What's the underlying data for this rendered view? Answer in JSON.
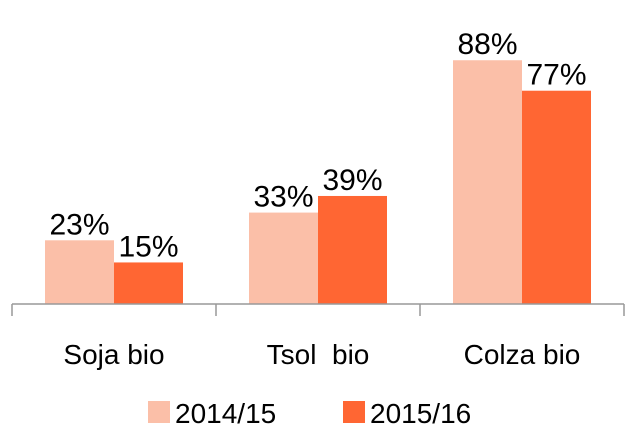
{
  "chart_data": {
    "type": "bar",
    "categories": [
      "Soja bio",
      "Tsol  bio",
      "Colza bio"
    ],
    "series": [
      {
        "name": "2014/15",
        "color": "#fbbfa8",
        "values": [
          23,
          33,
          88
        ],
        "value_labels": [
          "23%",
          "33%",
          "88%"
        ]
      },
      {
        "name": "2015/16",
        "color": "#ff6633",
        "values": [
          15,
          39,
          77
        ],
        "value_labels": [
          "15%",
          "39%",
          "77%"
        ]
      }
    ],
    "ylim": [
      0,
      100
    ],
    "legend": "bottom"
  }
}
